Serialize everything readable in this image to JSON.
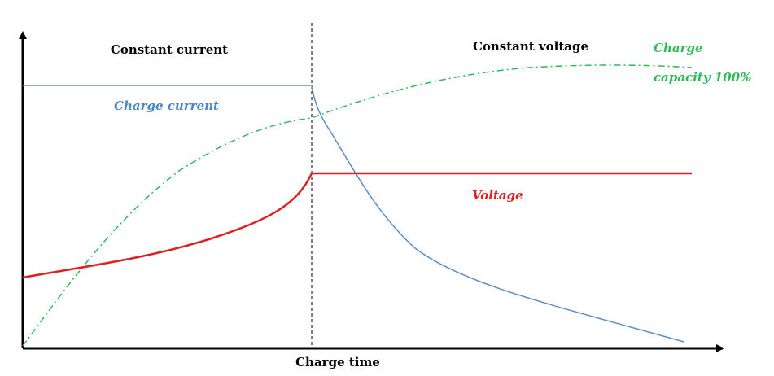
{
  "phases": {
    "constant_current": "Constant current",
    "constant_voltage": "Constant voltage"
  },
  "curves": {
    "charge_current": "Charge current",
    "voltage": "Voltage",
    "charge_capacity": [
      "Charge",
      "capacity 100%"
    ]
  },
  "x_axis": {
    "label": "Charge time"
  }
}
